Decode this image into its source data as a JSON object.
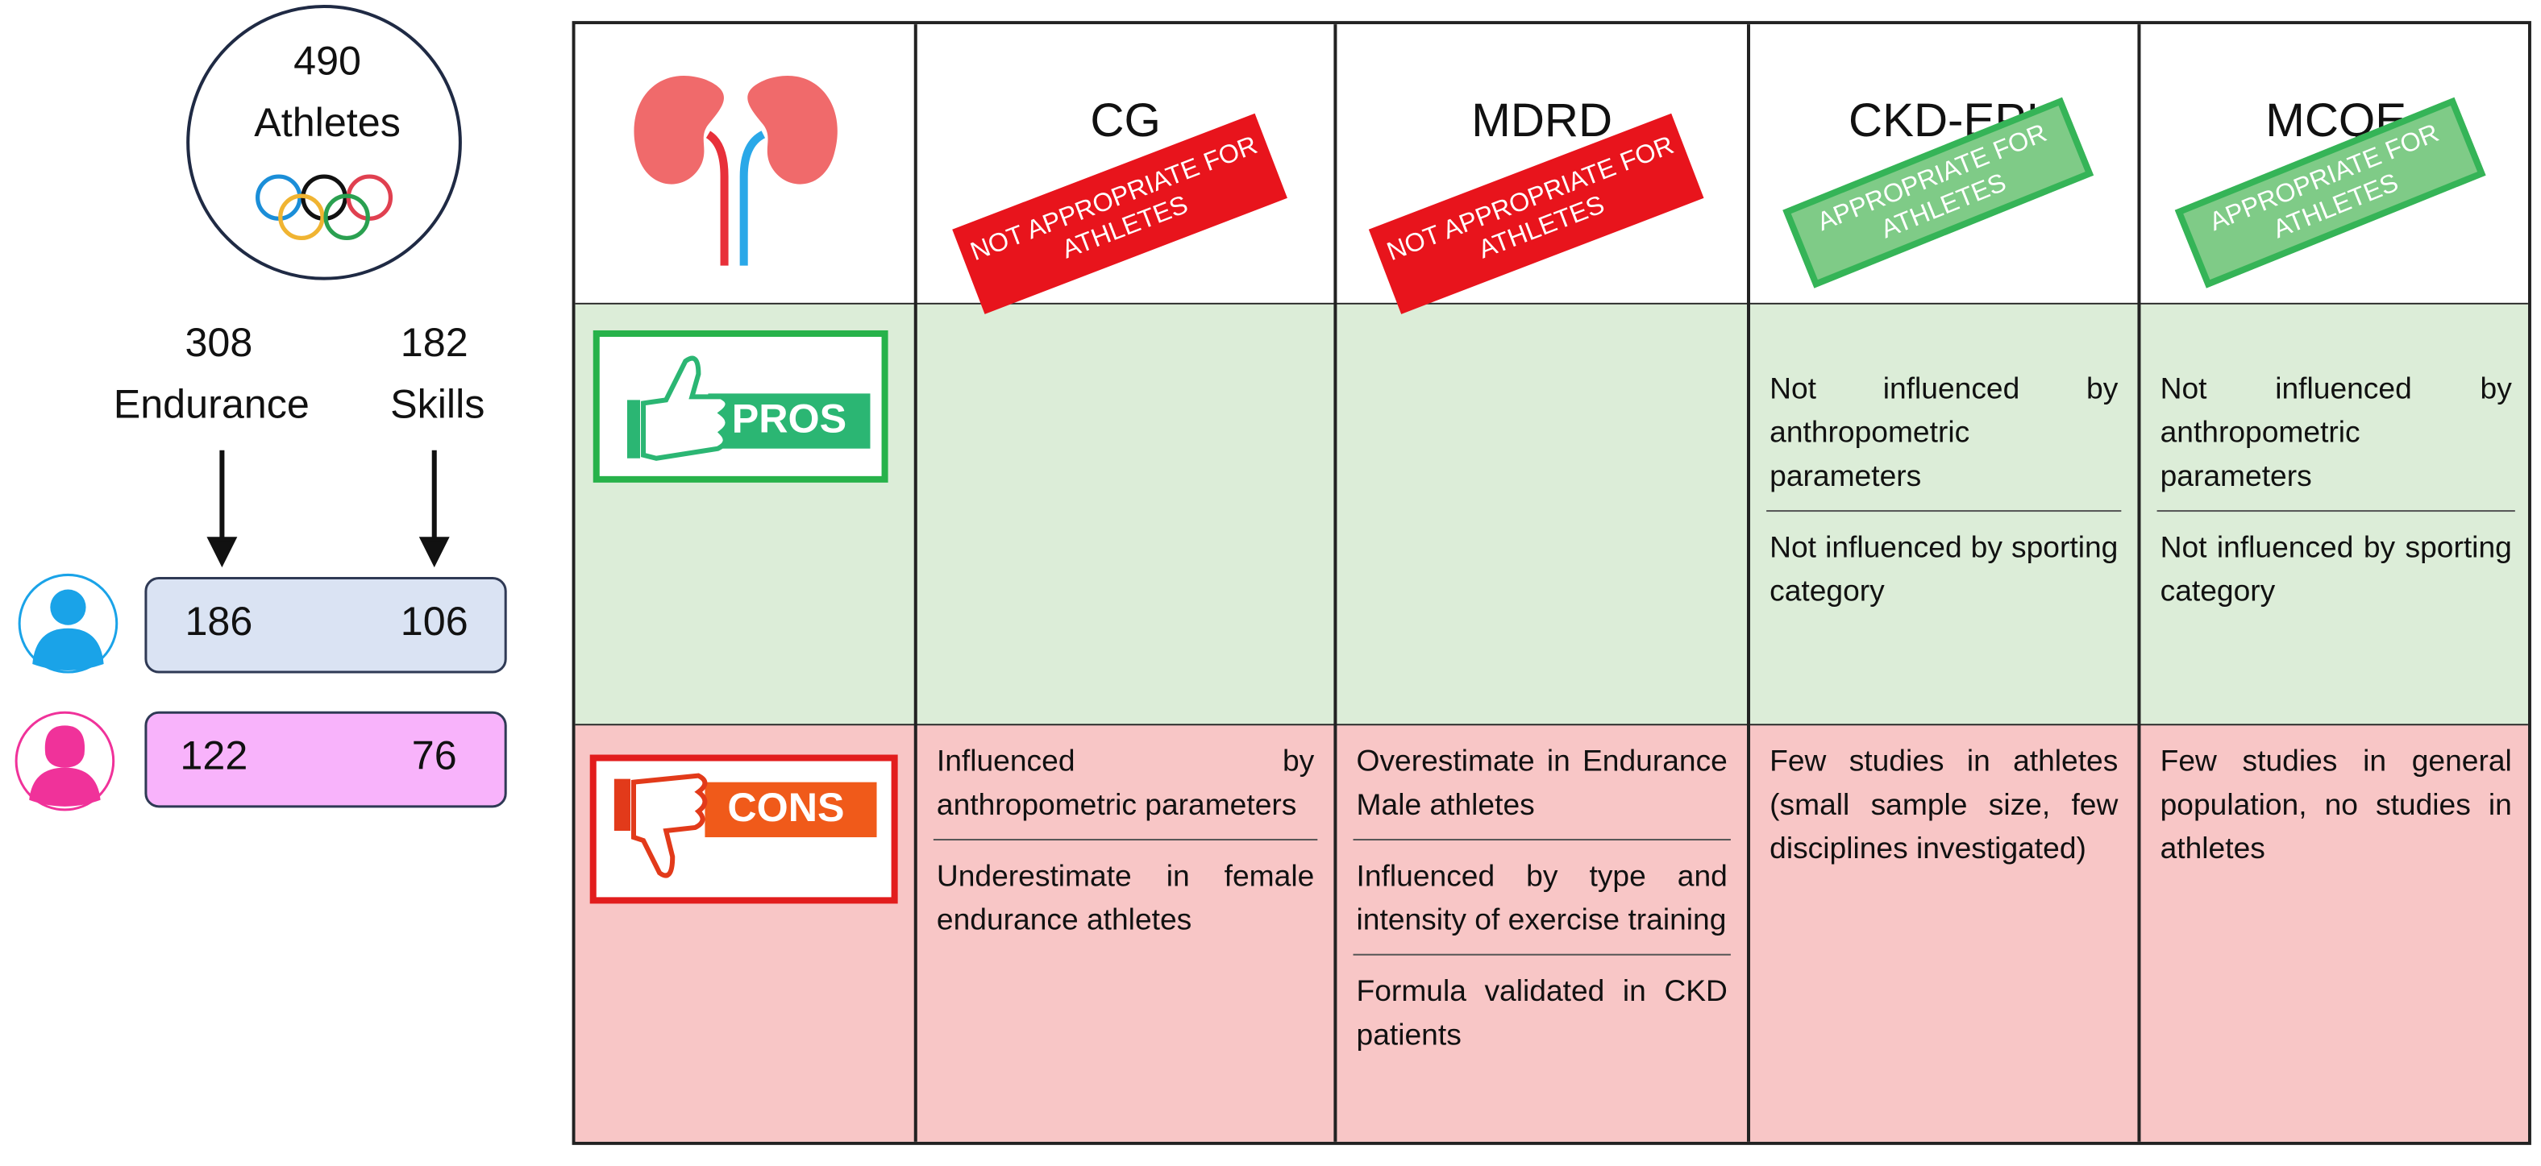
{
  "left": {
    "total": {
      "count": 490,
      "label": "Athletes"
    },
    "groups": [
      {
        "count": 308,
        "label": "Endurance"
      },
      {
        "count": 182,
        "label": "Skills"
      }
    ],
    "rows": [
      [
        186,
        106
      ],
      [
        122,
        76
      ]
    ]
  },
  "table": {
    "columns": [
      {
        "name": "CG",
        "badge": "NOT APPROPRIATE FOR ATHLETES",
        "appropriate": false
      },
      {
        "name": "MDRD",
        "badge": "NOT APPROPRIATE FOR ATHLETES",
        "appropriate": false
      },
      {
        "name": "CKD-EPI",
        "badge": "APPROPRIATE FOR ATHLETES",
        "appropriate": true
      },
      {
        "name": "MCQE",
        "badge": "APPROPRIATE FOR ATHLETES",
        "appropriate": true
      }
    ],
    "rows": [
      {
        "label": "PROS",
        "cells": [
          [],
          [],
          [
            "Not influenced by anthropometric parameters",
            "Not influenced by sporting category"
          ],
          [
            "Not influenced by anthropometric parameters",
            "Not influenced by sporting category"
          ]
        ]
      },
      {
        "label": "CONS",
        "cells": [
          [
            "Influenced by anthropometric parameters",
            "Underestimate in female endurance athletes"
          ],
          [
            "Overestimate in Endurance Male athletes",
            "Influenced by type and intensity of exercise training",
            "Formula validated in CKD patients"
          ],
          [
            "Few studies in athletes (small sample size, few disciplines investigated)"
          ],
          [
            "Few studies in general population, no studies in athletes"
          ]
        ]
      }
    ]
  }
}
